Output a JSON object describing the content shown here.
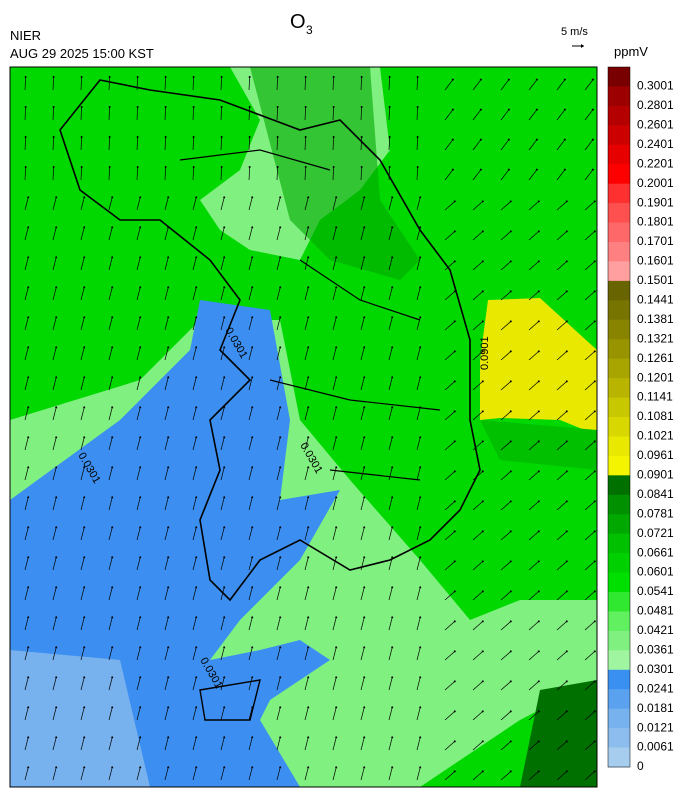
{
  "header": {
    "title": {
      "main": "O",
      "subscript": "3"
    },
    "agency": "NIER",
    "timestamp": "AUG 29 2025 15:00 KST",
    "wind_reference": "5 m/s"
  },
  "colorbar": {
    "unit": "ppmV",
    "levels": [
      0.3001,
      0.2801,
      0.2601,
      0.2401,
      0.2201,
      0.2001,
      0.1901,
      0.1801,
      0.1701,
      0.1601,
      0.1501,
      0.1441,
      0.1381,
      0.1321,
      0.1261,
      0.1201,
      0.1141,
      0.1081,
      0.1021,
      0.0961,
      0.0901,
      0.0841,
      0.0781,
      0.0721,
      0.0661,
      0.0601,
      0.0541,
      0.0481,
      0.0421,
      0.0361,
      0.0301,
      0.0241,
      0.0181,
      0.0121,
      0.0061,
      0
    ],
    "colors": [
      "#780000",
      "#9c0000",
      "#b40000",
      "#cc0000",
      "#e60000",
      "#ff0000",
      "#ff3030",
      "#ff5050",
      "#ff6868",
      "#ff8080",
      "#ff9f9f",
      "#686400",
      "#787400",
      "#888400",
      "#989400",
      "#a8a400",
      "#b8b400",
      "#c8c800",
      "#d8d800",
      "#e8e800",
      "#f4f400",
      "#007000",
      "#009000",
      "#00a800",
      "#00c000",
      "#00d000",
      "#00e000",
      "#30e830",
      "#60f060",
      "#80f080",
      "#a0f5a0",
      "#3a90f0",
      "#5aa2f0",
      "#78b2ee",
      "#8cbdee",
      "#a6cdee"
    ]
  },
  "map": {
    "contour_labels": [
      0.0301,
      0.0301,
      0.0301,
      0.0301,
      0.0901
    ]
  }
}
